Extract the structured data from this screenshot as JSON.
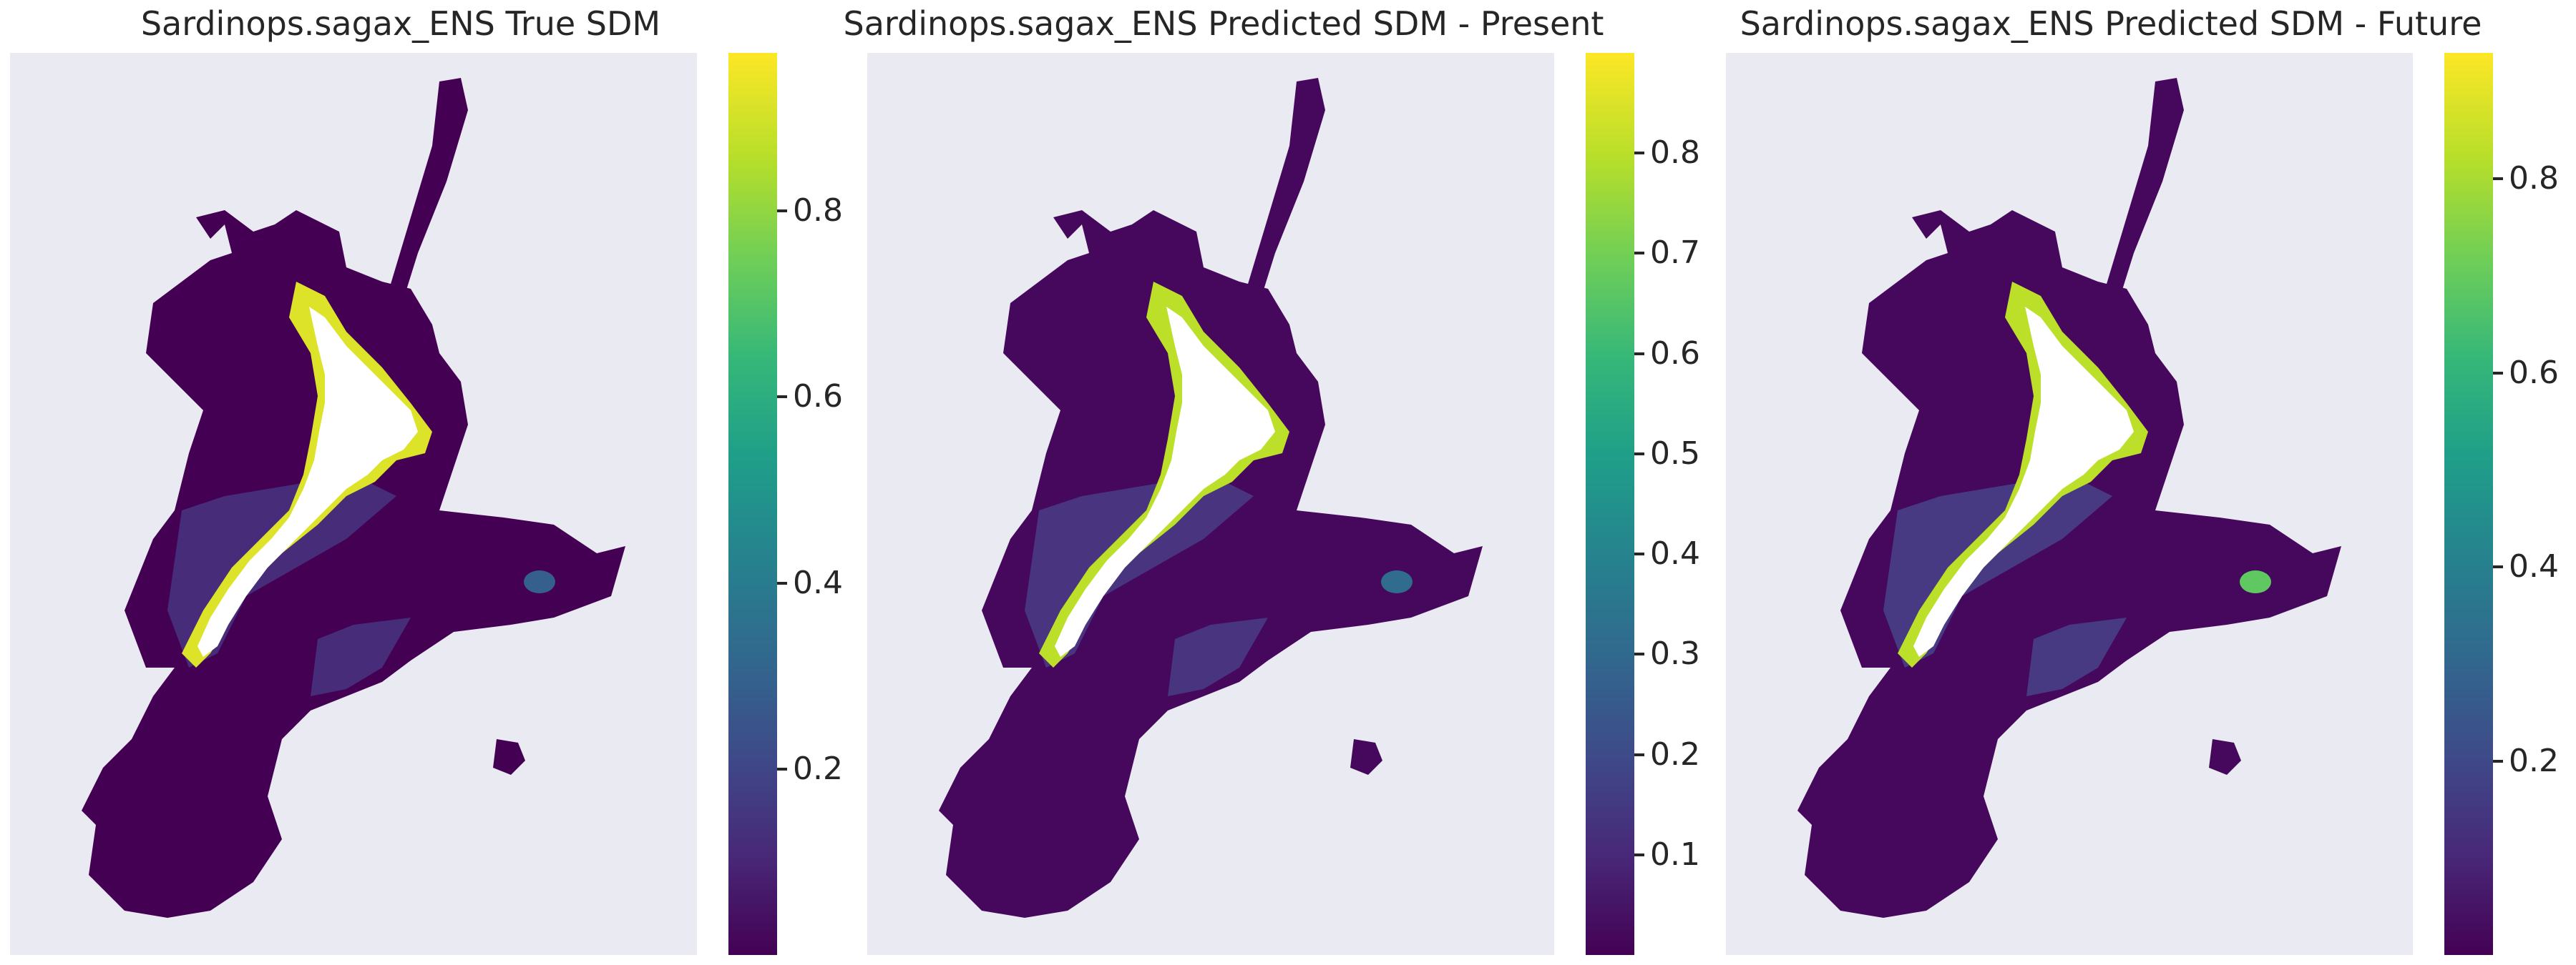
{
  "panels": [
    {
      "title": "Sardinops.sagax_ENS True SDM",
      "colorbar": {
        "min": 0.0,
        "max": 0.97,
        "ticks": [
          "0.2",
          "0.4",
          "0.6",
          "0.8"
        ]
      },
      "coastal_intensity": 0.95,
      "hotspot_intensity": 0.3
    },
    {
      "title": "Sardinops.sagax_ENS Predicted SDM - Present",
      "colorbar": {
        "min": 0.0,
        "max": 0.9,
        "ticks": [
          "0.1",
          "0.2",
          "0.3",
          "0.4",
          "0.5",
          "0.6",
          "0.7",
          "0.8"
        ]
      },
      "coastal_intensity": 0.9,
      "hotspot_intensity": 0.35
    },
    {
      "title": "Sardinops.sagax_ENS Predicted SDM - Future",
      "colorbar": {
        "min": 0.0,
        "max": 0.93,
        "ticks": [
          "0.2",
          "0.4",
          "0.6",
          "0.8"
        ]
      },
      "coastal_intensity": 0.9,
      "hotspot_intensity": 0.75
    }
  ],
  "colormap": "viridis",
  "colors": {
    "background": "#eaeaf2",
    "land": "#ffffff",
    "low": "#440154",
    "high": "#fde725"
  }
}
